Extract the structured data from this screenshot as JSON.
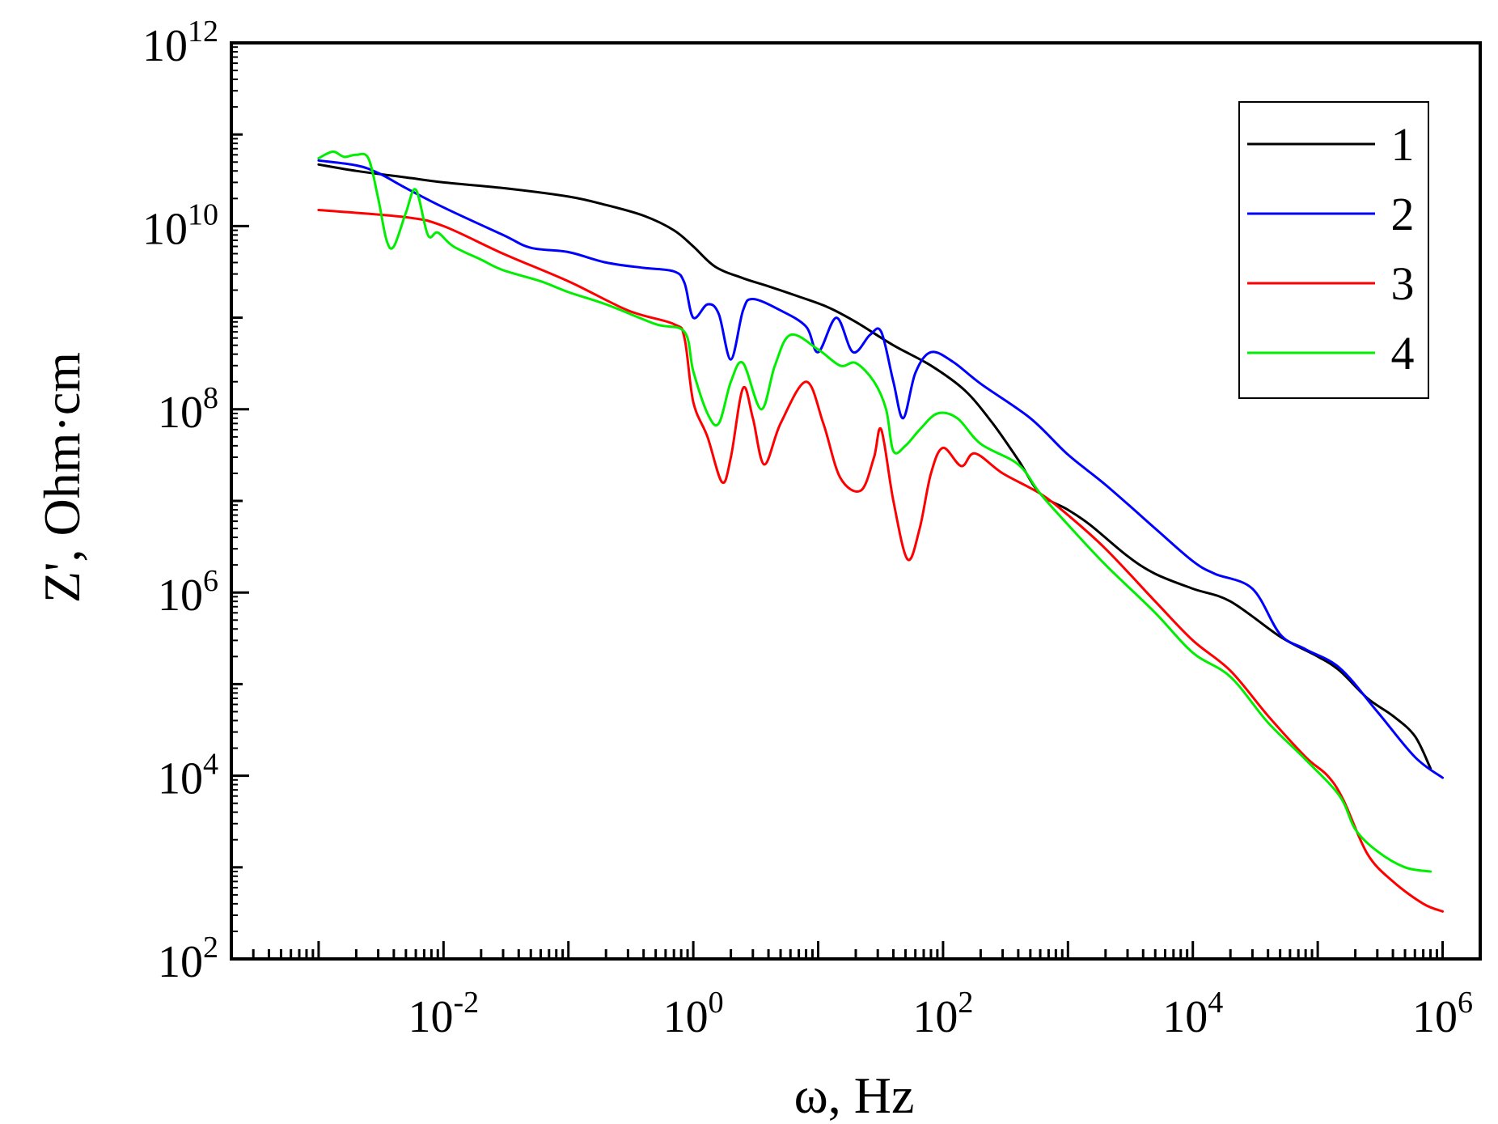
{
  "chart_data": {
    "type": "line",
    "title": "",
    "xlabel": "ω, Hz",
    "ylabel": "Z', Ohm·cm",
    "xscale": "log",
    "yscale": "log",
    "xlim": [
      0.0002,
      2000000
    ],
    "ylim": [
      100,
      1000000000000
    ],
    "grid": false,
    "legend_position": "top-right",
    "x_ticks": [
      {
        "value": 0.01,
        "base": "10",
        "exp": "-2"
      },
      {
        "value": 1,
        "base": "10",
        "exp": "0"
      },
      {
        "value": 100,
        "base": "10",
        "exp": "2"
      },
      {
        "value": 10000,
        "base": "10",
        "exp": "4"
      },
      {
        "value": 1000000,
        "base": "10",
        "exp": "6"
      }
    ],
    "y_ticks": [
      {
        "value": 100,
        "base": "10",
        "exp": "2"
      },
      {
        "value": 10000,
        "base": "10",
        "exp": "4"
      },
      {
        "value": 1000000,
        "base": "10",
        "exp": "6"
      },
      {
        "value": 100000000,
        "base": "10",
        "exp": "8"
      },
      {
        "value": 10000000000,
        "base": "10",
        "exp": "10"
      },
      {
        "value": 1000000000000,
        "base": "10",
        "exp": "12"
      }
    ],
    "series": [
      {
        "name": "1",
        "color": "#000000",
        "points": [
          [
            0.001,
            47000000000.0
          ],
          [
            0.002,
            40000000000.0
          ],
          [
            0.005,
            34000000000.0
          ],
          [
            0.01,
            30000000000.0
          ],
          [
            0.03,
            26000000000.0
          ],
          [
            0.1,
            21000000000.0
          ],
          [
            0.2,
            17000000000.0
          ],
          [
            0.4,
            13000000000.0
          ],
          [
            0.7,
            9000000000.0
          ],
          [
            1.0,
            6000000000.0
          ],
          [
            1.5,
            3600000000.0
          ],
          [
            2.5,
            2700000000.0
          ],
          [
            4,
            2200000000.0
          ],
          [
            7,
            1700000000.0
          ],
          [
            12,
            1300000000.0
          ],
          [
            20,
            900000000.0
          ],
          [
            40,
            500000000.0
          ],
          [
            80,
            300000000.0
          ],
          [
            150,
            160000000.0
          ],
          [
            250,
            70000000.0
          ],
          [
            400,
            28000000.0
          ],
          [
            600,
            12000000.0
          ],
          [
            1000,
            8000000.0
          ],
          [
            1500,
            5500000.0
          ],
          [
            3000,
            2500000.0
          ],
          [
            5000,
            1600000.0
          ],
          [
            10000,
            1100000.0
          ],
          [
            20000,
            800000.0
          ],
          [
            50000,
            330000.0
          ],
          [
            100000,
            200000.0
          ],
          [
            150000,
            140000.0
          ],
          [
            250000,
            70000.0
          ],
          [
            400000,
            45000.0
          ],
          [
            600000,
            27000.0
          ],
          [
            800000,
            12000.0
          ]
        ]
      },
      {
        "name": "2",
        "color": "#0000ff",
        "points": [
          [
            0.001,
            52000000000.0
          ],
          [
            0.002,
            46000000000.0
          ],
          [
            0.003,
            38000000000.0
          ],
          [
            0.005,
            26000000000.0
          ],
          [
            0.01,
            16000000000.0
          ],
          [
            0.03,
            8000000000.0
          ],
          [
            0.05,
            5800000000.0
          ],
          [
            0.1,
            5200000000.0
          ],
          [
            0.2,
            4000000000.0
          ],
          [
            0.4,
            3500000000.0
          ],
          [
            0.7,
            3200000000.0
          ],
          [
            0.85,
            2400000000.0
          ],
          [
            1.0,
            1000000000.0
          ],
          [
            1.3,
            1400000000.0
          ],
          [
            1.6,
            1100000000.0
          ],
          [
            2.0,
            350000000.0
          ],
          [
            2.5,
            1200000000.0
          ],
          [
            3,
            1600000000.0
          ],
          [
            5,
            1200000000.0
          ],
          [
            8,
            800000000.0
          ],
          [
            10,
            420000000.0
          ],
          [
            14,
            1000000000.0
          ],
          [
            19,
            420000000.0
          ],
          [
            26,
            650000000.0
          ],
          [
            32,
            700000000.0
          ],
          [
            40,
            200000000.0
          ],
          [
            48,
            80000000.0
          ],
          [
            60,
            250000000.0
          ],
          [
            80,
            420000000.0
          ],
          [
            120,
            330000000.0
          ],
          [
            200,
            190000000.0
          ],
          [
            500,
            80000000.0
          ],
          [
            1000,
            32000000.0
          ],
          [
            2000,
            15000000.0
          ],
          [
            5000,
            5000000.0
          ],
          [
            10000,
            2200000.0
          ],
          [
            15000,
            1600000.0
          ],
          [
            30000,
            1100000.0
          ],
          [
            50000,
            350000.0
          ],
          [
            80000,
            240000.0
          ],
          [
            150000,
            150000.0
          ],
          [
            300000,
            50000.0
          ],
          [
            600000,
            16000.0
          ],
          [
            1000000,
            9500.0
          ]
        ]
      },
      {
        "name": "3",
        "color": "#ff0000",
        "points": [
          [
            0.001,
            15000000000.0
          ],
          [
            0.005,
            12500000000.0
          ],
          [
            0.01,
            10000000000.0
          ],
          [
            0.03,
            5000000000.0
          ],
          [
            0.1,
            2500000000.0
          ],
          [
            0.3,
            1200000000.0
          ],
          [
            0.7,
            850000000.0
          ],
          [
            0.85,
            600000000.0
          ],
          [
            1.0,
            120000000.0
          ],
          [
            1.3,
            50000000.0
          ],
          [
            1.7,
            16000000.0
          ],
          [
            2.0,
            30000000.0
          ],
          [
            2.5,
            170000000.0
          ],
          [
            3,
            80000000.0
          ],
          [
            3.7,
            25000000.0
          ],
          [
            5,
            70000000.0
          ],
          [
            8,
            200000000.0
          ],
          [
            11,
            70000000.0
          ],
          [
            15,
            18000000.0
          ],
          [
            22,
            13000000.0
          ],
          [
            28,
            30000000.0
          ],
          [
            32,
            60000000.0
          ],
          [
            40,
            10000000.0
          ],
          [
            52,
            2300000.0
          ],
          [
            65,
            5000000.0
          ],
          [
            80,
            20000000.0
          ],
          [
            100,
            38000000.0
          ],
          [
            140,
            24000000.0
          ],
          [
            180,
            33000000.0
          ],
          [
            300,
            20000000.0
          ],
          [
            600,
            12000000.0
          ],
          [
            1000,
            7000000.0
          ],
          [
            2000,
            3000000.0
          ],
          [
            5000,
            800000.0
          ],
          [
            10000,
            300000.0
          ],
          [
            20000,
            140000.0
          ],
          [
            40000,
            45000.0
          ],
          [
            80000,
            16000.0
          ],
          [
            120000,
            10000.0
          ],
          [
            160000,
            5500.0
          ],
          [
            250000,
            1400.0
          ],
          [
            400000,
            700.0
          ],
          [
            700000,
            400.0
          ],
          [
            1000000,
            330.0
          ]
        ]
      },
      {
        "name": "4",
        "color": "#00ee00",
        "points": [
          [
            0.001,
            55000000000.0
          ],
          [
            0.0013,
            65000000000.0
          ],
          [
            0.0016,
            57000000000.0
          ],
          [
            0.002,
            60000000000.0
          ],
          [
            0.0025,
            55000000000.0
          ],
          [
            0.003,
            20000000000.0
          ],
          [
            0.0035,
            7000000000.0
          ],
          [
            0.004,
            6000000000.0
          ],
          [
            0.005,
            14000000000.0
          ],
          [
            0.006,
            25000000000.0
          ],
          [
            0.0075,
            8000000000.0
          ],
          [
            0.009,
            8500000000.0
          ],
          [
            0.012,
            6000000000.0
          ],
          [
            0.02,
            4300000000.0
          ],
          [
            0.03,
            3300000000.0
          ],
          [
            0.06,
            2500000000.0
          ],
          [
            0.1,
            1900000000.0
          ],
          [
            0.2,
            1400000000.0
          ],
          [
            0.5,
            850000000.0
          ],
          [
            0.85,
            700000000.0
          ],
          [
            1.0,
            260000000.0
          ],
          [
            1.3,
            90000000.0
          ],
          [
            1.6,
            70000000.0
          ],
          [
            2.0,
            200000000.0
          ],
          [
            2.5,
            320000000.0
          ],
          [
            3.5,
            100000000.0
          ],
          [
            4.5,
            300000000.0
          ],
          [
            6,
            650000000.0
          ],
          [
            10,
            450000000.0
          ],
          [
            15,
            300000000.0
          ],
          [
            20,
            320000000.0
          ],
          [
            28,
            200000000.0
          ],
          [
            35,
            100000000.0
          ],
          [
            40,
            35000000.0
          ],
          [
            50,
            40000000.0
          ],
          [
            65,
            60000000.0
          ],
          [
            90,
            90000000.0
          ],
          [
            130,
            80000000.0
          ],
          [
            200,
            42000000.0
          ],
          [
            400,
            25000000.0
          ],
          [
            600,
            12000000.0
          ],
          [
            1000,
            5500000.0
          ],
          [
            2000,
            2000000.0
          ],
          [
            5000,
            600000.0
          ],
          [
            10000,
            220000.0
          ],
          [
            20000,
            120000.0
          ],
          [
            40000,
            38000.0
          ],
          [
            80000,
            15000.0
          ],
          [
            150000,
            6000.0
          ],
          [
            200000,
            2600.0
          ],
          [
            300000,
            1500.0
          ],
          [
            500000,
            1000.0
          ],
          [
            800000,
            900.0
          ]
        ]
      }
    ]
  }
}
